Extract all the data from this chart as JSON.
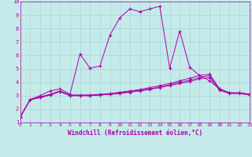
{
  "title": "",
  "xlabel": "Windchill (Refroidissement éolien,°C)",
  "xlim": [
    0,
    23
  ],
  "ylim": [
    1,
    10
  ],
  "xticks": [
    0,
    1,
    2,
    3,
    4,
    5,
    6,
    7,
    8,
    9,
    10,
    11,
    12,
    13,
    14,
    15,
    16,
    17,
    18,
    19,
    20,
    21,
    22,
    23
  ],
  "yticks": [
    1,
    2,
    3,
    4,
    5,
    6,
    7,
    8,
    9,
    10
  ],
  "bg_color": "#c5eaea",
  "line_color": "#aa00aa",
  "grid_color": "#aad4d4",
  "series": [
    {
      "x": [
        0,
        1,
        2,
        3,
        4,
        5,
        6,
        7,
        8,
        9,
        10,
        11,
        12,
        13,
        14,
        15,
        16,
        17,
        18,
        19,
        20,
        21,
        22,
        23
      ],
      "y": [
        1.4,
        2.7,
        3.0,
        3.35,
        3.5,
        3.1,
        6.1,
        5.05,
        5.2,
        7.5,
        8.8,
        9.45,
        9.25,
        9.45,
        9.65,
        5.05,
        7.8,
        5.1,
        4.5,
        4.1,
        3.5,
        3.2,
        3.2,
        3.1
      ]
    },
    {
      "x": [
        0,
        1,
        2,
        3,
        4,
        5,
        6,
        7,
        8,
        9,
        10,
        11,
        12,
        13,
        14,
        15,
        16,
        17,
        18,
        19,
        20,
        21,
        22,
        23
      ],
      "y": [
        1.4,
        2.7,
        2.9,
        3.1,
        3.35,
        3.05,
        3.05,
        3.05,
        3.1,
        3.15,
        3.25,
        3.35,
        3.45,
        3.6,
        3.75,
        3.9,
        4.1,
        4.3,
        4.5,
        4.6,
        3.5,
        3.2,
        3.2,
        3.1
      ]
    },
    {
      "x": [
        0,
        1,
        2,
        3,
        4,
        5,
        6,
        7,
        8,
        9,
        10,
        11,
        12,
        13,
        14,
        15,
        16,
        17,
        18,
        19,
        20,
        21,
        22,
        23
      ],
      "y": [
        1.4,
        2.7,
        2.85,
        3.05,
        3.3,
        3.0,
        3.0,
        3.0,
        3.05,
        3.1,
        3.2,
        3.3,
        3.4,
        3.5,
        3.65,
        3.8,
        4.0,
        4.15,
        4.35,
        4.5,
        3.45,
        3.2,
        3.2,
        3.1
      ]
    },
    {
      "x": [
        0,
        1,
        2,
        3,
        4,
        5,
        6,
        7,
        8,
        9,
        10,
        11,
        12,
        13,
        14,
        15,
        16,
        17,
        18,
        19,
        20,
        21,
        22,
        23
      ],
      "y": [
        1.4,
        2.7,
        2.85,
        3.05,
        3.3,
        3.0,
        3.0,
        3.0,
        3.05,
        3.1,
        3.15,
        3.25,
        3.35,
        3.45,
        3.6,
        3.75,
        3.9,
        4.05,
        4.25,
        4.35,
        3.4,
        3.15,
        3.15,
        3.05
      ]
    }
  ]
}
